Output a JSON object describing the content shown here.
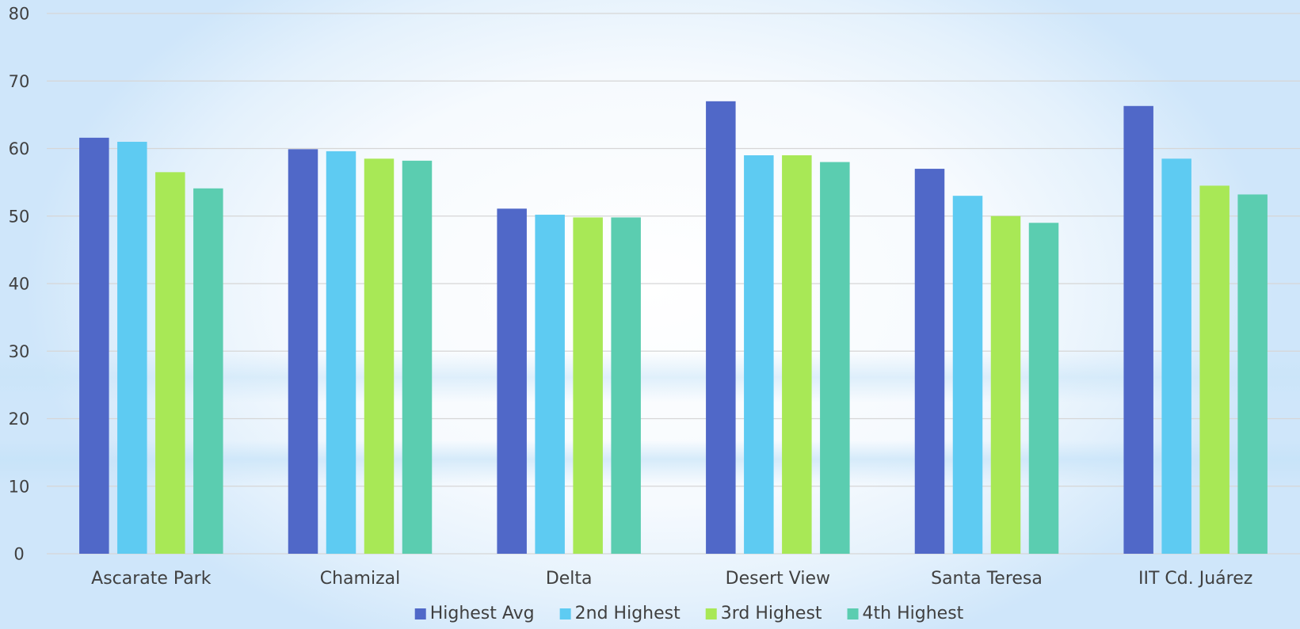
{
  "chart_data": {
    "type": "bar",
    "title": "",
    "xlabel": "",
    "ylabel": "",
    "ylim": [
      0,
      80
    ],
    "yticks": [
      0,
      10,
      20,
      30,
      40,
      50,
      60,
      70,
      80
    ],
    "grid": true,
    "legend_position": "bottom",
    "categories": [
      "Ascarate Park",
      "Chamizal",
      "Delta",
      "Desert View",
      "Santa Teresa",
      "IIT Cd. Juárez"
    ],
    "series": [
      {
        "name": "Highest Avg",
        "color": "#5068c8",
        "values": [
          61.6,
          59.9,
          51.1,
          67.0,
          57.0,
          66.3
        ]
      },
      {
        "name": "2nd Highest",
        "color": "#5ecbf2",
        "values": [
          61.0,
          59.6,
          50.2,
          59.0,
          53.0,
          58.5
        ]
      },
      {
        "name": "3rd Highest",
        "color": "#a8e856",
        "values": [
          56.5,
          58.5,
          49.8,
          59.0,
          50.0,
          54.5
        ]
      },
      {
        "name": "4th Highest",
        "color": "#5bcdb0",
        "values": [
          54.1,
          58.2,
          49.8,
          58.0,
          49.0,
          53.2
        ]
      }
    ]
  }
}
